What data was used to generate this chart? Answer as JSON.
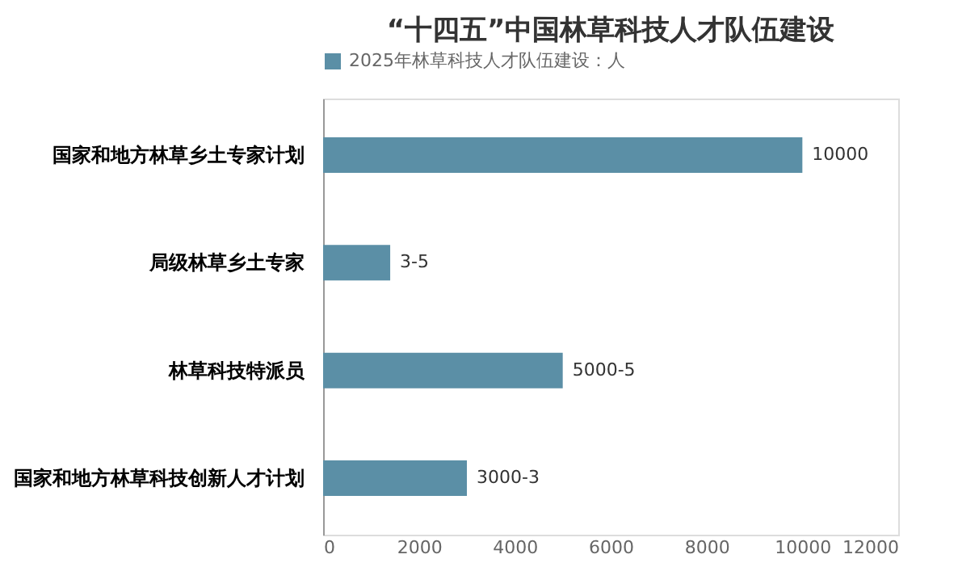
{
  "chart_data": {
    "type": "bar",
    "orientation": "horizontal",
    "title": "“十四五”中国林草科技人才队伍建设",
    "categories": [
      "国家和地方林草乡土专家计划",
      "局级林草乡土专家",
      "林草科技特派员",
      "国家和地方林草科技创新人才计划"
    ],
    "series": [
      {
        "name": "2025年林草科技人才队伍建设：人",
        "color": "#5b8fa6",
        "values": [
          10000,
          1400,
          5000,
          3000
        ],
        "value_labels": [
          "10000",
          "3-5",
          "5000-5",
          "3000-3"
        ]
      }
    ],
    "xlim": [
      0,
      12000
    ],
    "xticks": [
      0,
      2000,
      4000,
      6000,
      8000,
      10000,
      12000
    ],
    "grid": false,
    "legend": "top"
  }
}
